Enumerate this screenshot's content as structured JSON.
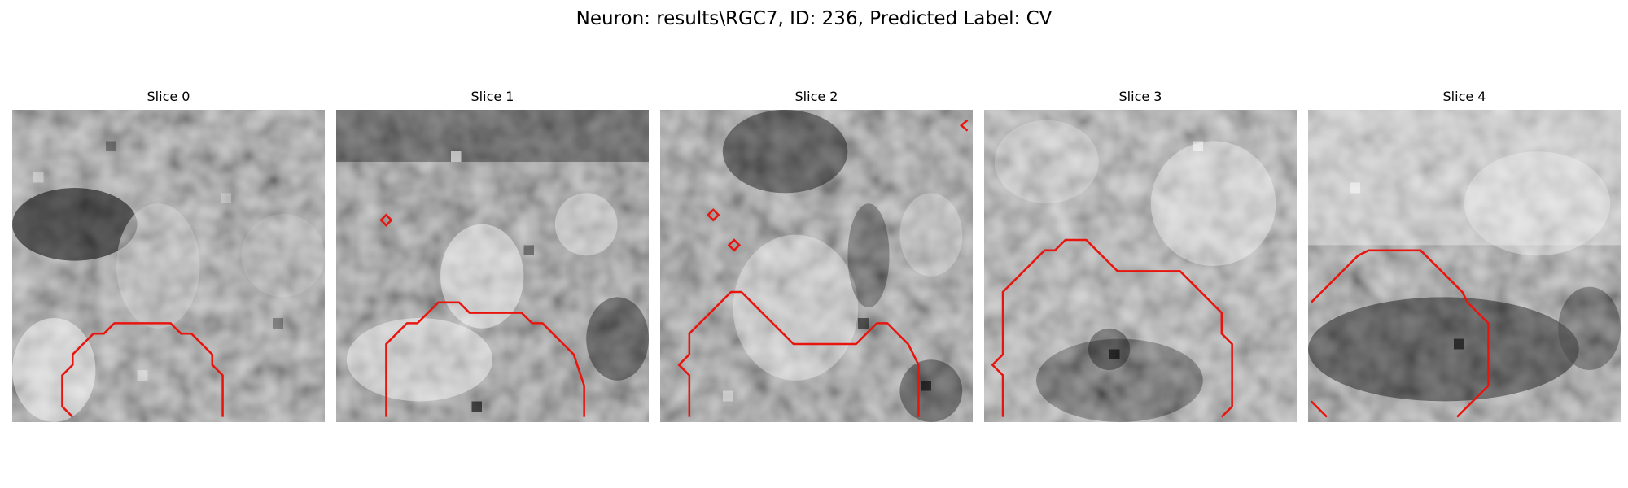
{
  "figure": {
    "title": "Neuron: results\\RGC7, ID: 236, Predicted Label: CV"
  },
  "colors": {
    "contour": "#e8150f",
    "background": "#ffffff"
  },
  "panels": [
    {
      "title": "Slice 0"
    },
    {
      "title": "Slice 1"
    },
    {
      "title": "Slice 2"
    },
    {
      "title": "Slice 3"
    },
    {
      "title": "Slice 4"
    }
  ]
}
